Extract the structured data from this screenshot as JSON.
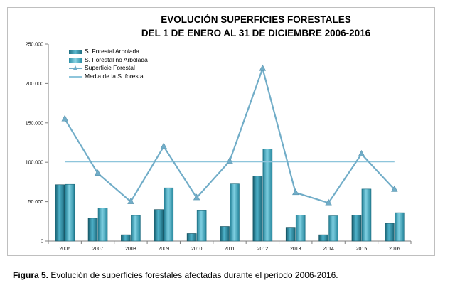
{
  "chart_data": {
    "type": "bar",
    "title": "EVOLUCIÓN SUPERFICIES FORESTALES",
    "subtitle": "DEL 1 DE ENERO AL 31 DE DICIEMBRE 2006-2016",
    "categories": [
      "2006",
      "2007",
      "2008",
      "2009",
      "2010",
      "2011",
      "2012",
      "2013",
      "2014",
      "2015",
      "2016"
    ],
    "ylim": [
      0,
      250000
    ],
    "ytick_labels": [
      "0",
      "50.000",
      "100.000",
      "150.000",
      "200.000",
      "250.000"
    ],
    "ytick_values": [
      0,
      50000,
      100000,
      150000,
      200000,
      250000
    ],
    "grid": false,
    "legend_position": "top-left",
    "series": [
      {
        "name": "S. Forestal Arbolada",
        "kind": "bar",
        "color": "#2e8ca3",
        "values": [
          71500,
          29000,
          8000,
          40000,
          9500,
          18500,
          82500,
          17500,
          8000,
          33000,
          22500
        ]
      },
      {
        "name": "S. Forestal no Arbolada",
        "kind": "bar",
        "color": "#3fa9c2",
        "values": [
          72000,
          42000,
          32500,
          67500,
          38500,
          72500,
          117000,
          33000,
          32000,
          66000,
          36000
        ]
      },
      {
        "name": "Superficie Forestal",
        "kind": "line",
        "color": "#71adc8",
        "values": [
          155000,
          86000,
          50000,
          120000,
          55000,
          101500,
          219000,
          61500,
          48500,
          110500,
          65500
        ]
      },
      {
        "name": "Media de la S. forestal",
        "kind": "line",
        "color": "#8ec5db",
        "values": [
          101000,
          101000,
          101000,
          101000,
          101000,
          101000,
          101000,
          101000,
          101000,
          101000,
          101000
        ]
      }
    ]
  },
  "caption": {
    "label": "Figura 5.",
    "text": " Evolución de superficies forestales afectadas durante el periodo 2006-2016."
  }
}
